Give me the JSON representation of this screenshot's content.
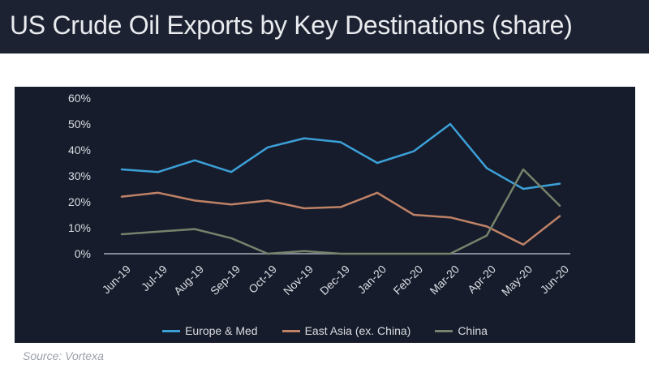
{
  "title": "US Crude Oil Exports by Key Destinations (share)",
  "source": "Source: Vortexa",
  "colors": {
    "title_bar_bg": "#1c2231",
    "panel_bg": "#161c2b",
    "europe_med": "#3ca0d8",
    "east_asia": "#c08267",
    "china": "#77826c",
    "axis": "#858b95",
    "labels": "#d9dce2"
  },
  "chart_data": {
    "type": "line",
    "title": "US Crude Oil Exports by Key Destinations (share)",
    "categories": [
      "Jun-19",
      "Jul-19",
      "Aug-19",
      "Sep-19",
      "Oct-19",
      "Nov-19",
      "Dec-19",
      "Jan-20",
      "Feb-20",
      "Mar-20",
      "Apr-20",
      "May-20",
      "Jun-20"
    ],
    "series": [
      {
        "name": "Europe & Med",
        "color": "#3ca0d8",
        "values": [
          32.5,
          31.5,
          36,
          31.5,
          41,
          44.5,
          43,
          35,
          39.5,
          50,
          33,
          25,
          27
        ]
      },
      {
        "name": "East Asia (ex. China)",
        "color": "#c08267",
        "values": [
          22,
          23.5,
          20.5,
          19,
          20.5,
          17.5,
          18,
          23.5,
          15,
          14,
          10.5,
          3.5,
          14.5
        ]
      },
      {
        "name": "China",
        "color": "#77826c",
        "values": [
          7.5,
          8.5,
          9.5,
          6,
          0,
          1,
          0,
          0,
          0,
          0,
          7,
          32.5,
          18.5
        ]
      }
    ],
    "xlabel": "",
    "ylabel": "",
    "ylim": [
      0,
      60
    ],
    "yticks": [
      0,
      10,
      20,
      30,
      40,
      50,
      60
    ],
    "ytick_suffix": "%",
    "grid": false,
    "legend_position": "bottom",
    "axis_color": "#858b95",
    "label_color": "#d9dce2"
  }
}
